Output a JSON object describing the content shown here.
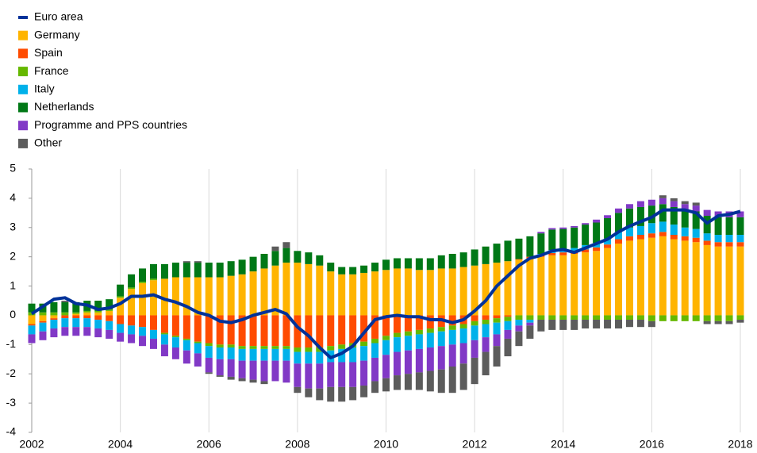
{
  "chart_data": {
    "type": "stacked_bar_line",
    "x": [
      2002,
      2002.25,
      2002.5,
      2002.75,
      2003,
      2003.25,
      2003.5,
      2003.75,
      2004,
      2004.25,
      2004.5,
      2004.75,
      2005,
      2005.25,
      2005.5,
      2005.75,
      2006,
      2006.25,
      2006.5,
      2006.75,
      2007,
      2007.25,
      2007.5,
      2007.75,
      2008,
      2008.25,
      2008.5,
      2008.75,
      2009,
      2009.25,
      2009.5,
      2009.75,
      2010,
      2010.25,
      2010.5,
      2010.75,
      2011,
      2011.25,
      2011.5,
      2011.75,
      2012,
      2012.25,
      2012.5,
      2012.75,
      2013,
      2013.25,
      2013.5,
      2013.75,
      2014,
      2014.25,
      2014.5,
      2014.75,
      2015,
      2015.25,
      2015.5,
      2015.75,
      2016,
      2016.25,
      2016.5,
      2016.75,
      2017,
      2017.25,
      2017.5,
      2017.75,
      2018
    ],
    "xlim": [
      2002,
      2018
    ],
    "xticks": [
      2002,
      2004,
      2006,
      2008,
      2010,
      2012,
      2014,
      2016,
      2018
    ],
    "ylim": [
      -4,
      5
    ],
    "yticks": [
      -4,
      -3,
      -2,
      -1,
      0,
      1,
      2,
      3,
      4,
      5
    ],
    "line": {
      "name": "Euro area",
      "color": "#003299",
      "values": [
        0.05,
        0.3,
        0.55,
        0.6,
        0.4,
        0.35,
        0.2,
        0.25,
        0.4,
        0.65,
        0.65,
        0.7,
        0.55,
        0.45,
        0.3,
        0.1,
        0.0,
        -0.2,
        -0.25,
        -0.15,
        0.0,
        0.1,
        0.2,
        0.05,
        -0.4,
        -0.7,
        -1.1,
        -1.45,
        -1.3,
        -1.05,
        -0.6,
        -0.15,
        -0.05,
        0.0,
        -0.05,
        -0.05,
        -0.15,
        -0.15,
        -0.25,
        -0.15,
        0.15,
        0.5,
        1.0,
        1.35,
        1.7,
        1.95,
        2.05,
        2.2,
        2.25,
        2.15,
        2.3,
        2.45,
        2.6,
        2.85,
        3.05,
        3.2,
        3.35,
        3.6,
        3.6,
        3.6,
        3.5,
        3.15,
        3.4,
        3.45,
        3.55
      ]
    },
    "series": [
      {
        "name": "Germany",
        "color": "#ffb400",
        "values": [
          -0.3,
          -0.2,
          -0.1,
          0.0,
          0.05,
          0.1,
          0.1,
          0.15,
          0.6,
          0.9,
          1.1,
          1.2,
          1.25,
          1.3,
          1.3,
          1.3,
          1.3,
          1.3,
          1.35,
          1.4,
          1.5,
          1.6,
          1.7,
          1.8,
          1.8,
          1.75,
          1.7,
          1.5,
          1.4,
          1.4,
          1.45,
          1.5,
          1.55,
          1.6,
          1.6,
          1.55,
          1.55,
          1.6,
          1.6,
          1.65,
          1.7,
          1.75,
          1.8,
          1.85,
          1.9,
          1.95,
          2.0,
          2.05,
          2.05,
          2.1,
          2.15,
          2.2,
          2.3,
          2.45,
          2.55,
          2.6,
          2.65,
          2.7,
          2.6,
          2.55,
          2.5,
          2.4,
          2.35,
          2.35,
          2.35
        ]
      },
      {
        "name": "Spain",
        "color": "#ff4b00",
        "values": [
          -0.05,
          -0.05,
          -0.05,
          -0.1,
          -0.1,
          -0.1,
          -0.15,
          -0.2,
          -0.3,
          -0.35,
          -0.4,
          -0.5,
          -0.6,
          -0.7,
          -0.8,
          -0.9,
          -0.95,
          -1.0,
          -1.0,
          -1.05,
          -1.05,
          -1.05,
          -1.05,
          -1.05,
          -1.1,
          -1.1,
          -1.1,
          -1.05,
          -1.0,
          -0.95,
          -0.9,
          -0.8,
          -0.7,
          -0.6,
          -0.55,
          -0.5,
          -0.45,
          -0.4,
          -0.35,
          -0.3,
          -0.2,
          -0.15,
          -0.1,
          -0.05,
          0.02,
          0.05,
          0.05,
          0.08,
          0.1,
          0.1,
          0.1,
          0.12,
          0.12,
          0.15,
          0.15,
          0.15,
          0.15,
          0.15,
          0.15,
          0.15,
          0.15,
          0.15,
          0.15,
          0.15,
          0.15
        ]
      },
      {
        "name": "France",
        "color": "#65b800",
        "values": [
          0.1,
          0.1,
          0.1,
          0.1,
          0.05,
          0.05,
          0.05,
          0.05,
          0.05,
          0.05,
          0.05,
          0.05,
          -0.05,
          -0.05,
          -0.05,
          -0.05,
          -0.1,
          -0.1,
          -0.1,
          -0.1,
          -0.1,
          -0.1,
          -0.1,
          -0.1,
          -0.15,
          -0.15,
          -0.15,
          -0.15,
          -0.15,
          -0.15,
          -0.15,
          -0.15,
          -0.15,
          -0.15,
          -0.15,
          -0.15,
          -0.15,
          -0.15,
          -0.15,
          -0.15,
          -0.15,
          -0.15,
          -0.15,
          -0.15,
          -0.15,
          -0.15,
          -0.15,
          -0.15,
          -0.15,
          -0.15,
          -0.15,
          -0.15,
          -0.15,
          -0.15,
          -0.15,
          -0.15,
          -0.2,
          -0.2,
          -0.2,
          -0.2,
          -0.2,
          -0.2,
          -0.2,
          -0.2,
          -0.15
        ]
      },
      {
        "name": "Italy",
        "color": "#00b1ea",
        "values": [
          -0.3,
          -0.3,
          -0.3,
          -0.3,
          -0.3,
          -0.3,
          -0.3,
          -0.3,
          -0.3,
          -0.3,
          -0.3,
          -0.3,
          -0.35,
          -0.35,
          -0.35,
          -0.35,
          -0.4,
          -0.4,
          -0.4,
          -0.4,
          -0.4,
          -0.4,
          -0.4,
          -0.4,
          -0.4,
          -0.4,
          -0.4,
          -0.4,
          -0.45,
          -0.5,
          -0.5,
          -0.5,
          -0.5,
          -0.5,
          -0.5,
          -0.5,
          -0.5,
          -0.5,
          -0.5,
          -0.5,
          -0.5,
          -0.45,
          -0.4,
          -0.3,
          -0.2,
          -0.1,
          0.05,
          0.1,
          0.1,
          0.1,
          0.15,
          0.15,
          0.2,
          0.25,
          0.3,
          0.3,
          0.35,
          0.35,
          0.35,
          0.3,
          0.3,
          0.25,
          0.25,
          0.25,
          0.25
        ]
      },
      {
        "name": "Netherlands",
        "color": "#007816",
        "values": [
          0.3,
          0.3,
          0.35,
          0.35,
          0.35,
          0.35,
          0.35,
          0.35,
          0.4,
          0.45,
          0.45,
          0.5,
          0.5,
          0.5,
          0.5,
          0.5,
          0.5,
          0.5,
          0.5,
          0.5,
          0.5,
          0.5,
          0.5,
          0.5,
          0.4,
          0.4,
          0.35,
          0.3,
          0.25,
          0.25,
          0.25,
          0.3,
          0.35,
          0.35,
          0.35,
          0.4,
          0.4,
          0.45,
          0.5,
          0.5,
          0.55,
          0.6,
          0.65,
          0.7,
          0.7,
          0.7,
          0.7,
          0.7,
          0.7,
          0.7,
          0.7,
          0.7,
          0.7,
          0.65,
          0.65,
          0.65,
          0.6,
          0.6,
          0.6,
          0.6,
          0.6,
          0.6,
          0.6,
          0.6,
          0.6
        ]
      },
      {
        "name": "Programme and PPS countries",
        "color": "#8139c6",
        "values": [
          -0.3,
          -0.3,
          -0.3,
          -0.3,
          -0.3,
          -0.3,
          -0.3,
          -0.3,
          -0.3,
          -0.3,
          -0.35,
          -0.35,
          -0.4,
          -0.4,
          -0.45,
          -0.45,
          -0.5,
          -0.55,
          -0.6,
          -0.6,
          -0.65,
          -0.7,
          -0.7,
          -0.75,
          -0.8,
          -0.85,
          -0.85,
          -0.85,
          -0.85,
          -0.85,
          -0.85,
          -0.8,
          -0.8,
          -0.8,
          -0.8,
          -0.8,
          -0.8,
          -0.8,
          -0.75,
          -0.7,
          -0.6,
          -0.5,
          -0.4,
          -0.3,
          -0.2,
          -0.1,
          0.05,
          0.05,
          0.05,
          0.05,
          0.05,
          0.1,
          0.1,
          0.15,
          0.15,
          0.2,
          0.2,
          0.2,
          0.2,
          0.2,
          0.2,
          0.2,
          0.2,
          0.2,
          0.2
        ]
      },
      {
        "name": "Other",
        "color": "#5c5c5c",
        "values": [
          0,
          0,
          0,
          0.05,
          0,
          0,
          0,
          0,
          0,
          0,
          0,
          0,
          0,
          0,
          0.05,
          0.05,
          -0.05,
          -0.05,
          -0.1,
          -0.1,
          -0.1,
          -0.1,
          0.15,
          0.2,
          -0.2,
          -0.3,
          -0.4,
          -0.5,
          -0.5,
          -0.45,
          -0.4,
          -0.4,
          -0.45,
          -0.5,
          -0.55,
          -0.6,
          -0.7,
          -0.8,
          -0.9,
          -0.9,
          -0.9,
          -0.8,
          -0.7,
          -0.6,
          -0.5,
          -0.45,
          -0.4,
          -0.35,
          -0.35,
          -0.35,
          -0.3,
          -0.3,
          -0.3,
          -0.3,
          -0.25,
          -0.25,
          -0.2,
          0.1,
          0.1,
          0.1,
          0.1,
          -0.1,
          -0.1,
          -0.1,
          -0.1
        ]
      }
    ]
  }
}
